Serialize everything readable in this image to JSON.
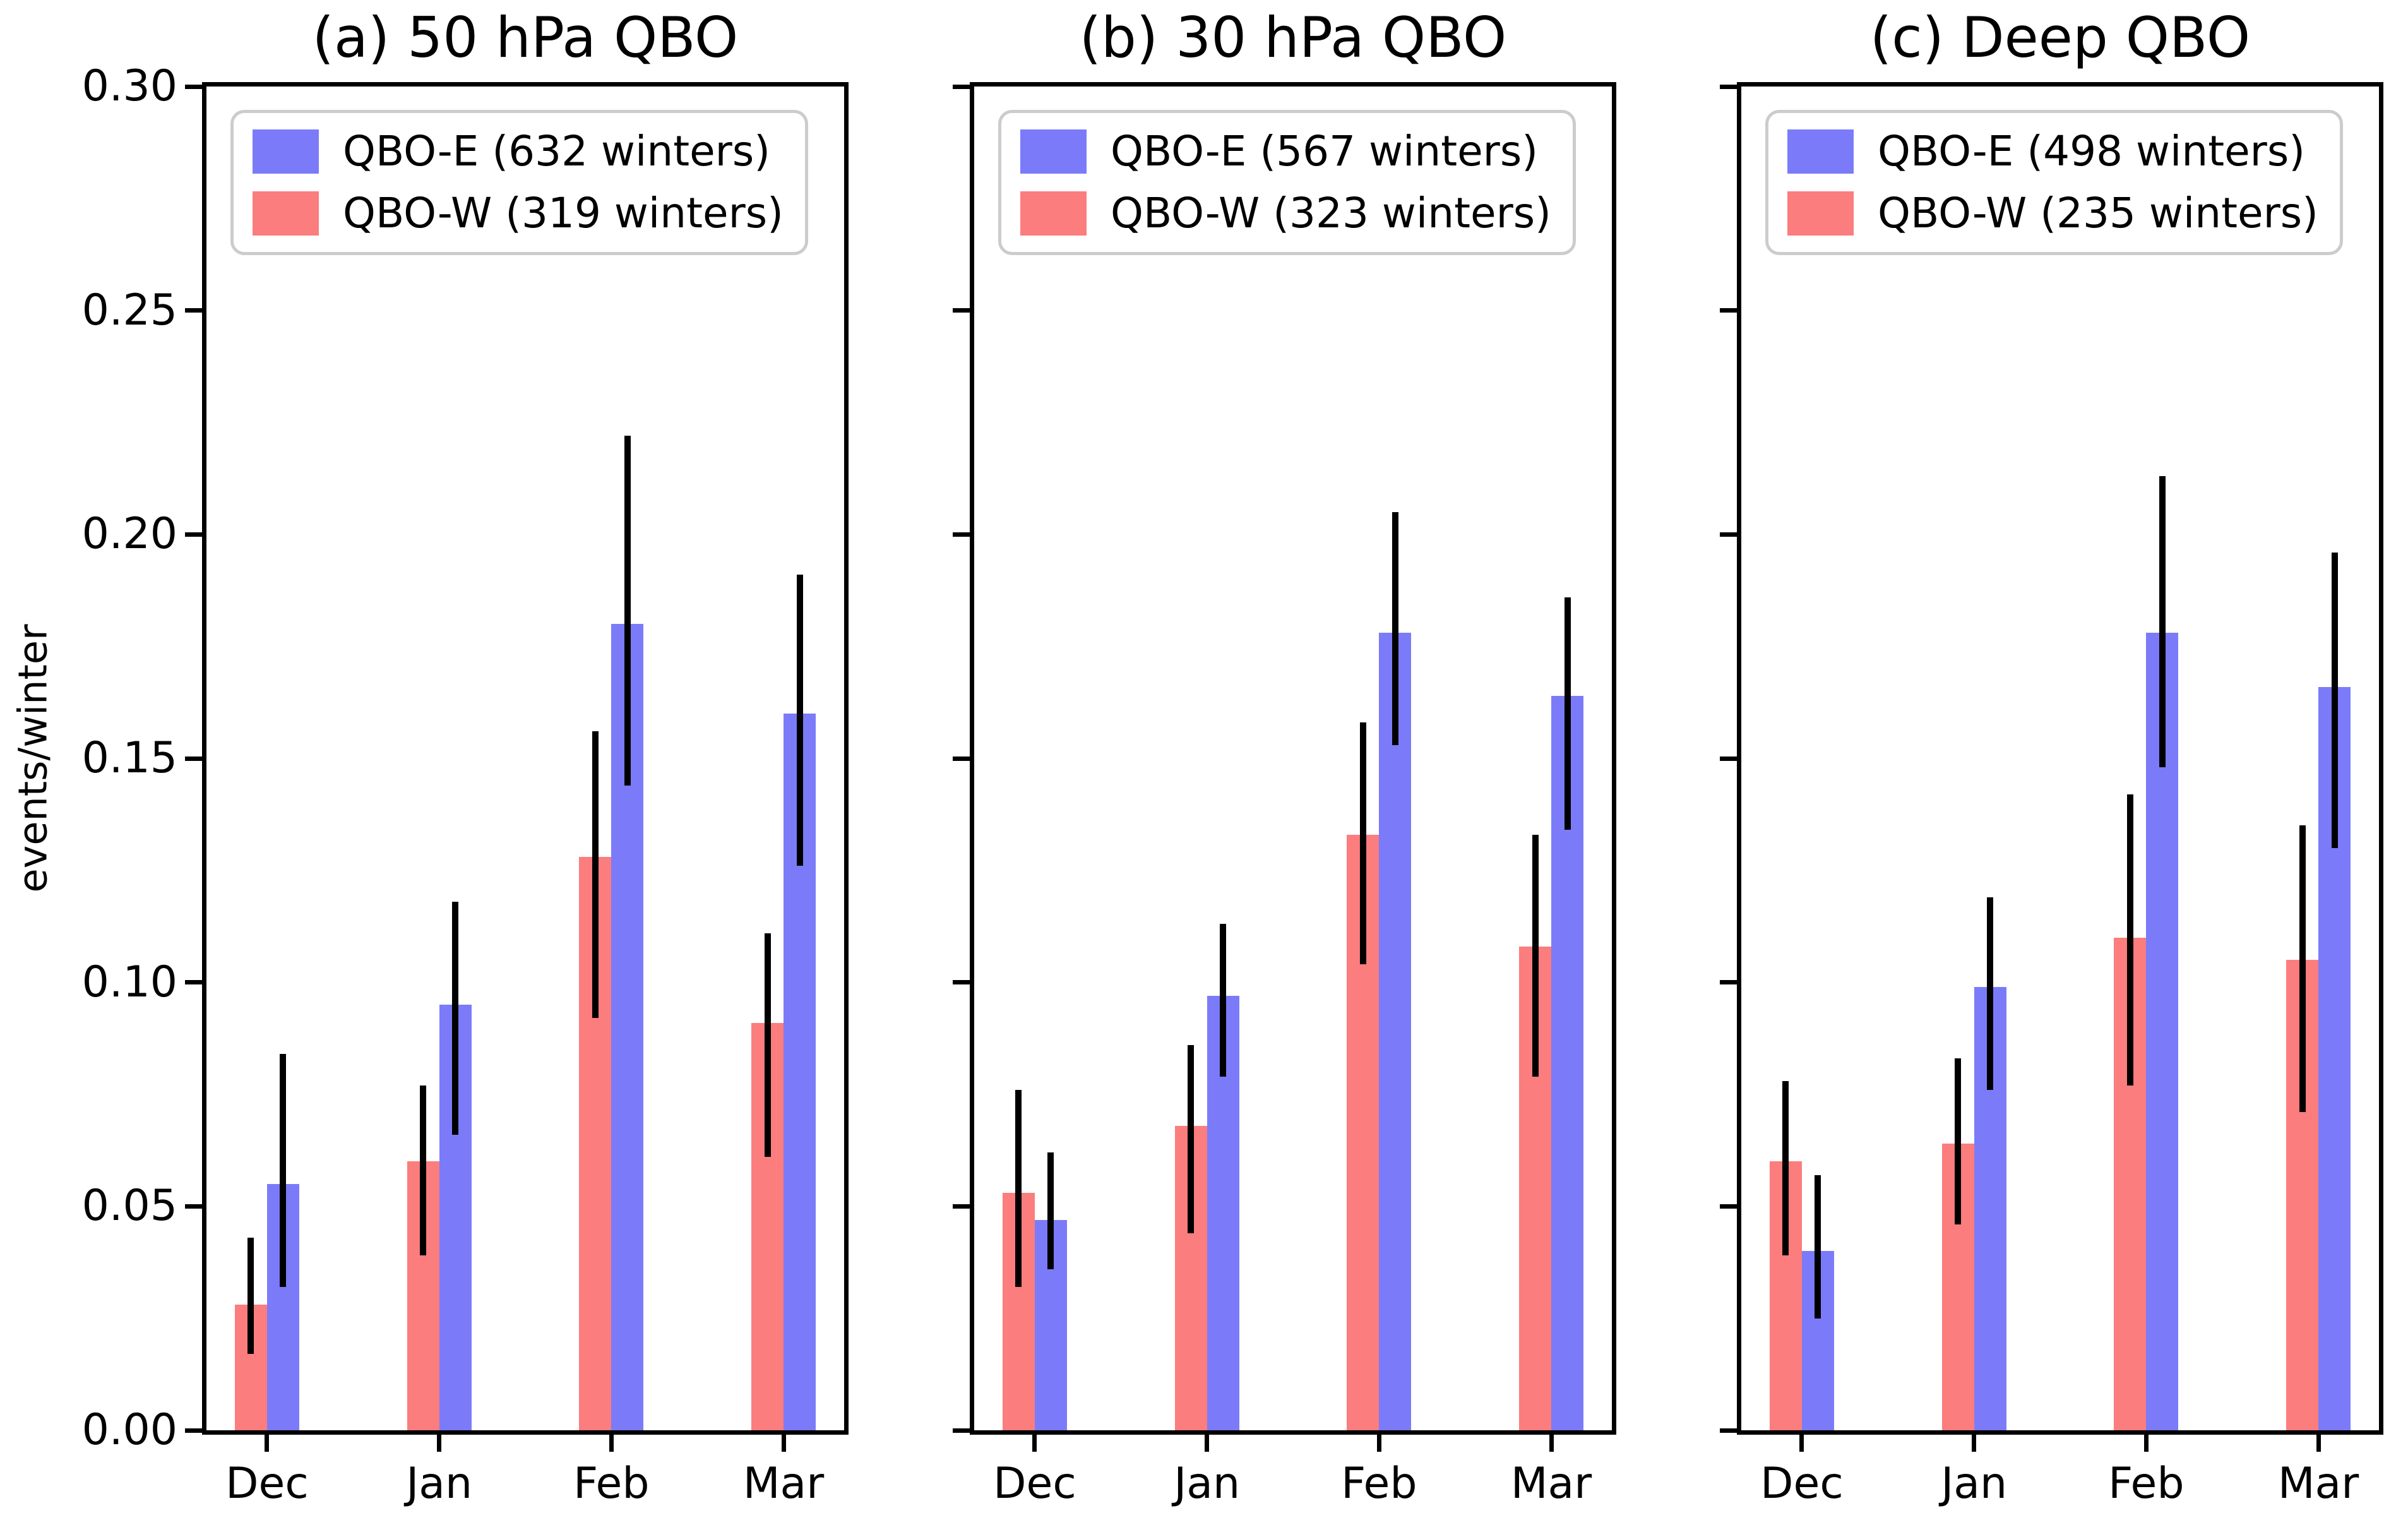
{
  "chart_data": [
    {
      "type": "bar",
      "title": "(a) 50 hPa QBO",
      "categories": [
        "Dec",
        "Jan",
        "Feb",
        "Mar"
      ],
      "ylabel": "events/winter",
      "ylim": [
        0,
        0.3
      ],
      "yticks": [
        "0.00",
        "0.05",
        "0.10",
        "0.15",
        "0.20",
        "0.25",
        "0.30"
      ],
      "grid": false,
      "legend_position": "upper left",
      "error_bar_color": "#000000",
      "series": [
        {
          "name": "QBO-E (632 winters)",
          "color": "#7b7bf9",
          "values": [
            0.055,
            0.095,
            0.18,
            0.16
          ],
          "err_lo": [
            0.032,
            0.066,
            0.144,
            0.126
          ],
          "err_hi": [
            0.084,
            0.118,
            0.222,
            0.191
          ]
        },
        {
          "name": "QBO-W (319 winters)",
          "color": "#fb7d7d",
          "values": [
            0.028,
            0.06,
            0.128,
            0.091
          ],
          "err_lo": [
            0.017,
            0.039,
            0.092,
            0.061
          ],
          "err_hi": [
            0.043,
            0.077,
            0.156,
            0.111
          ]
        }
      ]
    },
    {
      "type": "bar",
      "title": "(b) 30 hPa QBO",
      "categories": [
        "Dec",
        "Jan",
        "Feb",
        "Mar"
      ],
      "ylabel": "",
      "ylim": [
        0,
        0.3
      ],
      "yticks": [
        "0.00",
        "0.05",
        "0.10",
        "0.15",
        "0.20",
        "0.25",
        "0.30"
      ],
      "grid": false,
      "legend_position": "upper left",
      "error_bar_color": "#000000",
      "series": [
        {
          "name": "QBO-E (567 winters)",
          "color": "#7b7bf9",
          "values": [
            0.047,
            0.097,
            0.178,
            0.164
          ],
          "err_lo": [
            0.036,
            0.079,
            0.153,
            0.134
          ],
          "err_hi": [
            0.062,
            0.113,
            0.205,
            0.186
          ]
        },
        {
          "name": "QBO-W (323 winters)",
          "color": "#fb7d7d",
          "values": [
            0.053,
            0.068,
            0.133,
            0.108
          ],
          "err_lo": [
            0.032,
            0.044,
            0.104,
            0.079
          ],
          "err_hi": [
            0.076,
            0.086,
            0.158,
            0.133
          ]
        }
      ]
    },
    {
      "type": "bar",
      "title": "(c) Deep QBO",
      "categories": [
        "Dec",
        "Jan",
        "Feb",
        "Mar"
      ],
      "ylabel": "",
      "ylim": [
        0,
        0.3
      ],
      "yticks": [
        "0.00",
        "0.05",
        "0.10",
        "0.15",
        "0.20",
        "0.25",
        "0.30"
      ],
      "grid": false,
      "legend_position": "upper left",
      "error_bar_color": "#000000",
      "series": [
        {
          "name": "QBO-E (498 winters)",
          "color": "#7b7bf9",
          "values": [
            0.04,
            0.099,
            0.178,
            0.166
          ],
          "err_lo": [
            0.025,
            0.076,
            0.148,
            0.13
          ],
          "err_hi": [
            0.057,
            0.119,
            0.213,
            0.196
          ]
        },
        {
          "name": "QBO-W (235 winters)",
          "color": "#fb7d7d",
          "values": [
            0.06,
            0.064,
            0.11,
            0.105
          ],
          "err_lo": [
            0.039,
            0.046,
            0.077,
            0.071
          ],
          "err_hi": [
            0.078,
            0.083,
            0.142,
            0.135
          ]
        }
      ]
    }
  ]
}
